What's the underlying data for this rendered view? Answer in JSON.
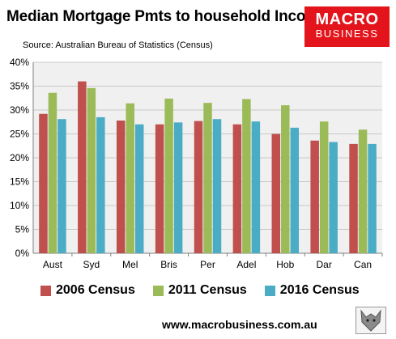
{
  "header": {
    "title": "Median Mortgage Pmts to household Income",
    "source": "Source: Australian Bureau of Statistics (Census)"
  },
  "logo": {
    "line1": "MACRO",
    "line2": "BUSINESS"
  },
  "footer": {
    "url": "www.macrobusiness.com.au",
    "icon": "wolf-icon"
  },
  "colors": {
    "plot_bg": "#f0f0f0",
    "grid": "#c8c8c8",
    "logo_red": "#e3141b"
  },
  "chart_data": {
    "type": "bar",
    "title": "Median Mortgage Pmts to household Income",
    "categories": [
      "Aust",
      "Syd",
      "Mel",
      "Bris",
      "Per",
      "Adel",
      "Hob",
      "Dar",
      "Can"
    ],
    "series": [
      {
        "name": "2006 Census",
        "color": "#c0504d",
        "values": [
          29.2,
          36.0,
          27.8,
          27.0,
          27.7,
          27.0,
          25.0,
          23.6,
          22.9
        ]
      },
      {
        "name": "2011 Census",
        "color": "#9bbb59",
        "values": [
          33.6,
          34.6,
          31.4,
          32.4,
          31.5,
          32.3,
          31.0,
          27.6,
          25.9
        ]
      },
      {
        "name": "2016 Census",
        "color": "#4bacc6",
        "values": [
          28.1,
          28.5,
          27.0,
          27.4,
          28.1,
          27.6,
          26.3,
          23.3,
          22.9
        ]
      }
    ],
    "ylim": [
      0,
      40
    ],
    "yticks": [
      "0%",
      "5%",
      "10%",
      "15%",
      "20%",
      "25%",
      "30%",
      "35%",
      "40%"
    ],
    "grid": true,
    "legend": "bottom"
  }
}
